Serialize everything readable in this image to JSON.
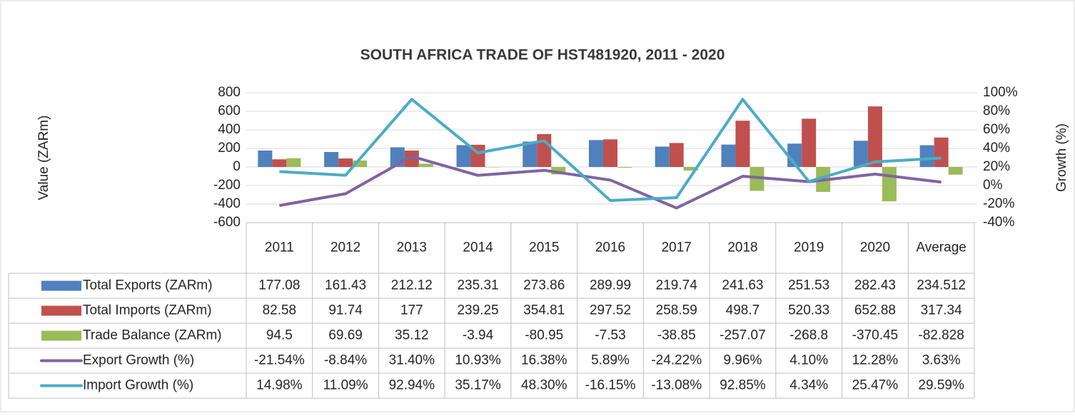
{
  "chart_data": {
    "type": "bar",
    "title": "SOUTH AFRICA TRADE OF HST481920, 2011 - 2020",
    "y_label": "Value (ZARm)",
    "y2_label": "Growth (%)",
    "categories": [
      "2011",
      "2012",
      "2013",
      "2014",
      "2015",
      "2016",
      "2017",
      "2018",
      "2019",
      "2020",
      "Average"
    ],
    "ylim": [
      -600,
      800
    ],
    "yticks": [
      -600,
      -400,
      -200,
      0,
      200,
      400,
      600,
      800
    ],
    "y2lim": [
      -40,
      100
    ],
    "y2ticks": [
      {
        "value": -40,
        "label": "-40%"
      },
      {
        "value": -20,
        "label": "-20%"
      },
      {
        "value": 0,
        "label": "0%"
      },
      {
        "value": 20,
        "label": "20%"
      },
      {
        "value": 40,
        "label": "40%"
      },
      {
        "value": 60,
        "label": "60%"
      },
      {
        "value": 80,
        "label": "80%"
      },
      {
        "value": 100,
        "label": "100%"
      }
    ],
    "grid": true,
    "series": [
      {
        "name": "Total Exports (ZARm)",
        "type": "bar",
        "color": "#4f81bd",
        "values": [
          177.08,
          161.43,
          212.12,
          235.31,
          273.86,
          289.99,
          219.74,
          241.63,
          251.53,
          282.43,
          234.512
        ]
      },
      {
        "name": "Total Imports (ZARm)",
        "type": "bar",
        "color": "#c0504d",
        "values": [
          82.58,
          91.74,
          177,
          239.25,
          354.81,
          297.52,
          258.59,
          498.7,
          520.33,
          652.88,
          317.34
        ]
      },
      {
        "name": "Trade Balance (ZARm)",
        "type": "bar",
        "color": "#9bbb59",
        "values": [
          94.5,
          69.69,
          35.12,
          -3.94,
          -80.95,
          -7.53,
          -38.85,
          -257.07,
          -268.8,
          -370.45,
          -82.828
        ]
      },
      {
        "name": "Export Growth (%)",
        "type": "line",
        "axis": "y2",
        "color": "#8064a2",
        "values": [
          -21.54,
          -8.84,
          31.4,
          10.93,
          16.38,
          5.89,
          -24.22,
          9.96,
          4.1,
          12.28,
          3.63
        ],
        "value_labels": [
          "-21.54%",
          "-8.84%",
          "31.40%",
          "10.93%",
          "16.38%",
          "5.89%",
          "-24.22%",
          "9.96%",
          "4.10%",
          "12.28%",
          "3.63%"
        ]
      },
      {
        "name": "Import Growth (%)",
        "type": "line",
        "axis": "y2",
        "color": "#4bacc6",
        "values": [
          14.98,
          11.09,
          92.94,
          35.17,
          48.3,
          -16.15,
          -13.08,
          92.85,
          4.34,
          25.47,
          29.59
        ],
        "value_labels": [
          "14.98%",
          "11.09%",
          "92.94%",
          "35.17%",
          "48.30%",
          "-16.15%",
          "-13.08%",
          "92.85%",
          "4.34%",
          "25.47%",
          "29.59%"
        ]
      }
    ]
  }
}
